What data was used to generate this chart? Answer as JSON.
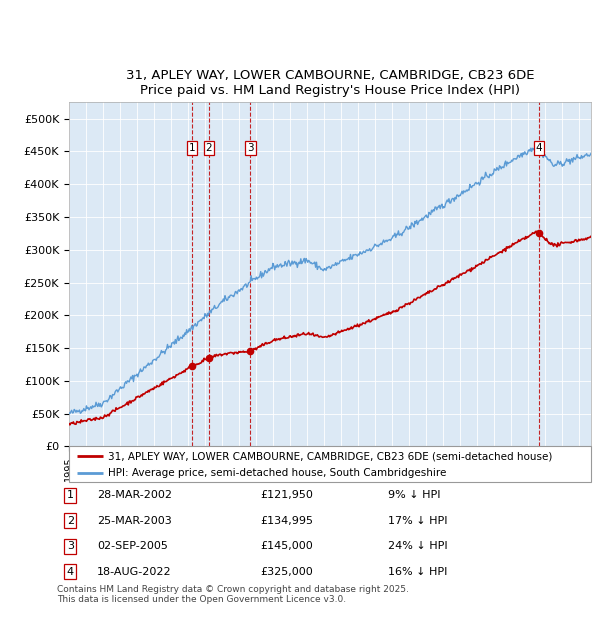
{
  "title_line1": "31, APLEY WAY, LOWER CAMBOURNE, CAMBRIDGE, CB23 6DE",
  "title_line2": "Price paid vs. HM Land Registry's House Price Index (HPI)",
  "background_color": "#dce9f5",
  "ylim": [
    0,
    525000
  ],
  "yticks": [
    0,
    50000,
    100000,
    150000,
    200000,
    250000,
    300000,
    350000,
    400000,
    450000,
    500000
  ],
  "ytick_labels": [
    "£0",
    "£50K",
    "£100K",
    "£150K",
    "£200K",
    "£250K",
    "£300K",
    "£350K",
    "£400K",
    "£450K",
    "£500K"
  ],
  "xlim_start": 1995.0,
  "xlim_end": 2025.7,
  "hpi_color": "#5b9bd5",
  "price_color": "#c00000",
  "legend_label_price": "31, APLEY WAY, LOWER CAMBOURNE, CAMBRIDGE, CB23 6DE (semi-detached house)",
  "legend_label_hpi": "HPI: Average price, semi-detached house, South Cambridgeshire",
  "sale_dates": [
    2002.23,
    2003.23,
    2005.67,
    2022.63
  ],
  "sale_prices": [
    121950,
    134995,
    145000,
    325000
  ],
  "sale_labels": [
    "1",
    "2",
    "3",
    "4"
  ],
  "table_data": [
    [
      "1",
      "28-MAR-2002",
      "£121,950",
      "9% ↓ HPI"
    ],
    [
      "2",
      "25-MAR-2003",
      "£134,995",
      "17% ↓ HPI"
    ],
    [
      "3",
      "02-SEP-2005",
      "£145,000",
      "24% ↓ HPI"
    ],
    [
      "4",
      "18-AUG-2022",
      "£325,000",
      "16% ↓ HPI"
    ]
  ],
  "footnote": "Contains HM Land Registry data © Crown copyright and database right 2025.\nThis data is licensed under the Open Government Licence v3.0.",
  "label_box_edge": "#c00000"
}
